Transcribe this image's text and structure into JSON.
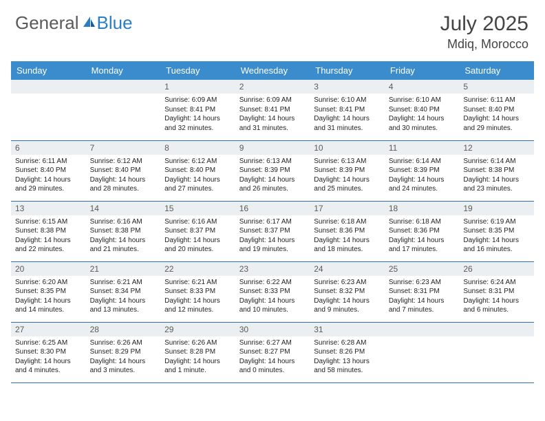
{
  "brand": {
    "part1": "General",
    "part2": "Blue"
  },
  "title": "July 2025",
  "location": "Mdiq, Morocco",
  "colors": {
    "header_bg": "#3b8ccc",
    "daybar_bg": "#eceff2",
    "rule": "#2f6faa",
    "brand_gray": "#5a5a5a",
    "brand_blue": "#2a7ec5"
  },
  "day_headers": [
    "Sunday",
    "Monday",
    "Tuesday",
    "Wednesday",
    "Thursday",
    "Friday",
    "Saturday"
  ],
  "weeks": [
    [
      null,
      null,
      {
        "n": "1",
        "sunrise": "6:09 AM",
        "sunset": "8:41 PM",
        "daylight": "14 hours and 32 minutes."
      },
      {
        "n": "2",
        "sunrise": "6:09 AM",
        "sunset": "8:41 PM",
        "daylight": "14 hours and 31 minutes."
      },
      {
        "n": "3",
        "sunrise": "6:10 AM",
        "sunset": "8:41 PM",
        "daylight": "14 hours and 31 minutes."
      },
      {
        "n": "4",
        "sunrise": "6:10 AM",
        "sunset": "8:40 PM",
        "daylight": "14 hours and 30 minutes."
      },
      {
        "n": "5",
        "sunrise": "6:11 AM",
        "sunset": "8:40 PM",
        "daylight": "14 hours and 29 minutes."
      }
    ],
    [
      {
        "n": "6",
        "sunrise": "6:11 AM",
        "sunset": "8:40 PM",
        "daylight": "14 hours and 29 minutes."
      },
      {
        "n": "7",
        "sunrise": "6:12 AM",
        "sunset": "8:40 PM",
        "daylight": "14 hours and 28 minutes."
      },
      {
        "n": "8",
        "sunrise": "6:12 AM",
        "sunset": "8:40 PM",
        "daylight": "14 hours and 27 minutes."
      },
      {
        "n": "9",
        "sunrise": "6:13 AM",
        "sunset": "8:39 PM",
        "daylight": "14 hours and 26 minutes."
      },
      {
        "n": "10",
        "sunrise": "6:13 AM",
        "sunset": "8:39 PM",
        "daylight": "14 hours and 25 minutes."
      },
      {
        "n": "11",
        "sunrise": "6:14 AM",
        "sunset": "8:39 PM",
        "daylight": "14 hours and 24 minutes."
      },
      {
        "n": "12",
        "sunrise": "6:14 AM",
        "sunset": "8:38 PM",
        "daylight": "14 hours and 23 minutes."
      }
    ],
    [
      {
        "n": "13",
        "sunrise": "6:15 AM",
        "sunset": "8:38 PM",
        "daylight": "14 hours and 22 minutes."
      },
      {
        "n": "14",
        "sunrise": "6:16 AM",
        "sunset": "8:38 PM",
        "daylight": "14 hours and 21 minutes."
      },
      {
        "n": "15",
        "sunrise": "6:16 AM",
        "sunset": "8:37 PM",
        "daylight": "14 hours and 20 minutes."
      },
      {
        "n": "16",
        "sunrise": "6:17 AM",
        "sunset": "8:37 PM",
        "daylight": "14 hours and 19 minutes."
      },
      {
        "n": "17",
        "sunrise": "6:18 AM",
        "sunset": "8:36 PM",
        "daylight": "14 hours and 18 minutes."
      },
      {
        "n": "18",
        "sunrise": "6:18 AM",
        "sunset": "8:36 PM",
        "daylight": "14 hours and 17 minutes."
      },
      {
        "n": "19",
        "sunrise": "6:19 AM",
        "sunset": "8:35 PM",
        "daylight": "14 hours and 16 minutes."
      }
    ],
    [
      {
        "n": "20",
        "sunrise": "6:20 AM",
        "sunset": "8:35 PM",
        "daylight": "14 hours and 14 minutes."
      },
      {
        "n": "21",
        "sunrise": "6:21 AM",
        "sunset": "8:34 PM",
        "daylight": "14 hours and 13 minutes."
      },
      {
        "n": "22",
        "sunrise": "6:21 AM",
        "sunset": "8:33 PM",
        "daylight": "14 hours and 12 minutes."
      },
      {
        "n": "23",
        "sunrise": "6:22 AM",
        "sunset": "8:33 PM",
        "daylight": "14 hours and 10 minutes."
      },
      {
        "n": "24",
        "sunrise": "6:23 AM",
        "sunset": "8:32 PM",
        "daylight": "14 hours and 9 minutes."
      },
      {
        "n": "25",
        "sunrise": "6:23 AM",
        "sunset": "8:31 PM",
        "daylight": "14 hours and 7 minutes."
      },
      {
        "n": "26",
        "sunrise": "6:24 AM",
        "sunset": "8:31 PM",
        "daylight": "14 hours and 6 minutes."
      }
    ],
    [
      {
        "n": "27",
        "sunrise": "6:25 AM",
        "sunset": "8:30 PM",
        "daylight": "14 hours and 4 minutes."
      },
      {
        "n": "28",
        "sunrise": "6:26 AM",
        "sunset": "8:29 PM",
        "daylight": "14 hours and 3 minutes."
      },
      {
        "n": "29",
        "sunrise": "6:26 AM",
        "sunset": "8:28 PM",
        "daylight": "14 hours and 1 minute."
      },
      {
        "n": "30",
        "sunrise": "6:27 AM",
        "sunset": "8:27 PM",
        "daylight": "14 hours and 0 minutes."
      },
      {
        "n": "31",
        "sunrise": "6:28 AM",
        "sunset": "8:26 PM",
        "daylight": "13 hours and 58 minutes."
      },
      null,
      null
    ]
  ],
  "labels": {
    "sunrise": "Sunrise:",
    "sunset": "Sunset:",
    "daylight": "Daylight:"
  }
}
